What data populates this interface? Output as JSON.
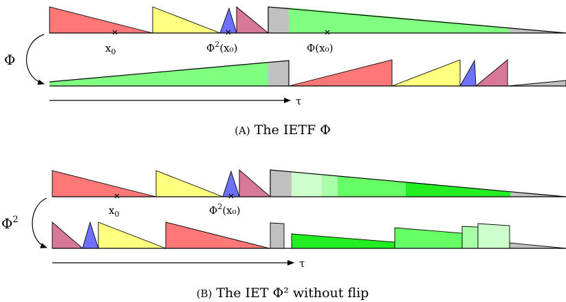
{
  "colors": {
    "red": "#ff7777",
    "yellow": "#ffff80",
    "blue": "#7070ff",
    "pink": "#d87898",
    "gray": "#c0c0c0",
    "green": "#80ff80",
    "green_light": "#ccffcc",
    "green_mid": "#a8ffa8",
    "green_med": "#66ff66",
    "green_bright": "#22ee22"
  },
  "panel_a": {
    "map_symbol": "Φ",
    "points": [
      {
        "label": "x",
        "sub": "0",
        "sup": "",
        "suffix": ""
      },
      {
        "label": "Φ",
        "sub": "",
        "sup": "2",
        "suffix": "(x₀)"
      },
      {
        "label": "Φ(x₀)",
        "sub": "",
        "sup": "",
        "suffix": ""
      }
    ],
    "axis_label": "τ",
    "caption_tag": "(A)",
    "caption_text": "The IETF Φ"
  },
  "panel_b": {
    "map_symbol": "Φ",
    "map_sup": "2",
    "points": [
      {
        "label": "x",
        "sub": "0",
        "sup": "",
        "suffix": ""
      },
      {
        "label": "Φ",
        "sub": "",
        "sup": "2",
        "suffix": "(x₀)"
      }
    ],
    "axis_label": "τ",
    "caption_tag": "(B)",
    "caption_text": "The IET Φ² without flip"
  }
}
